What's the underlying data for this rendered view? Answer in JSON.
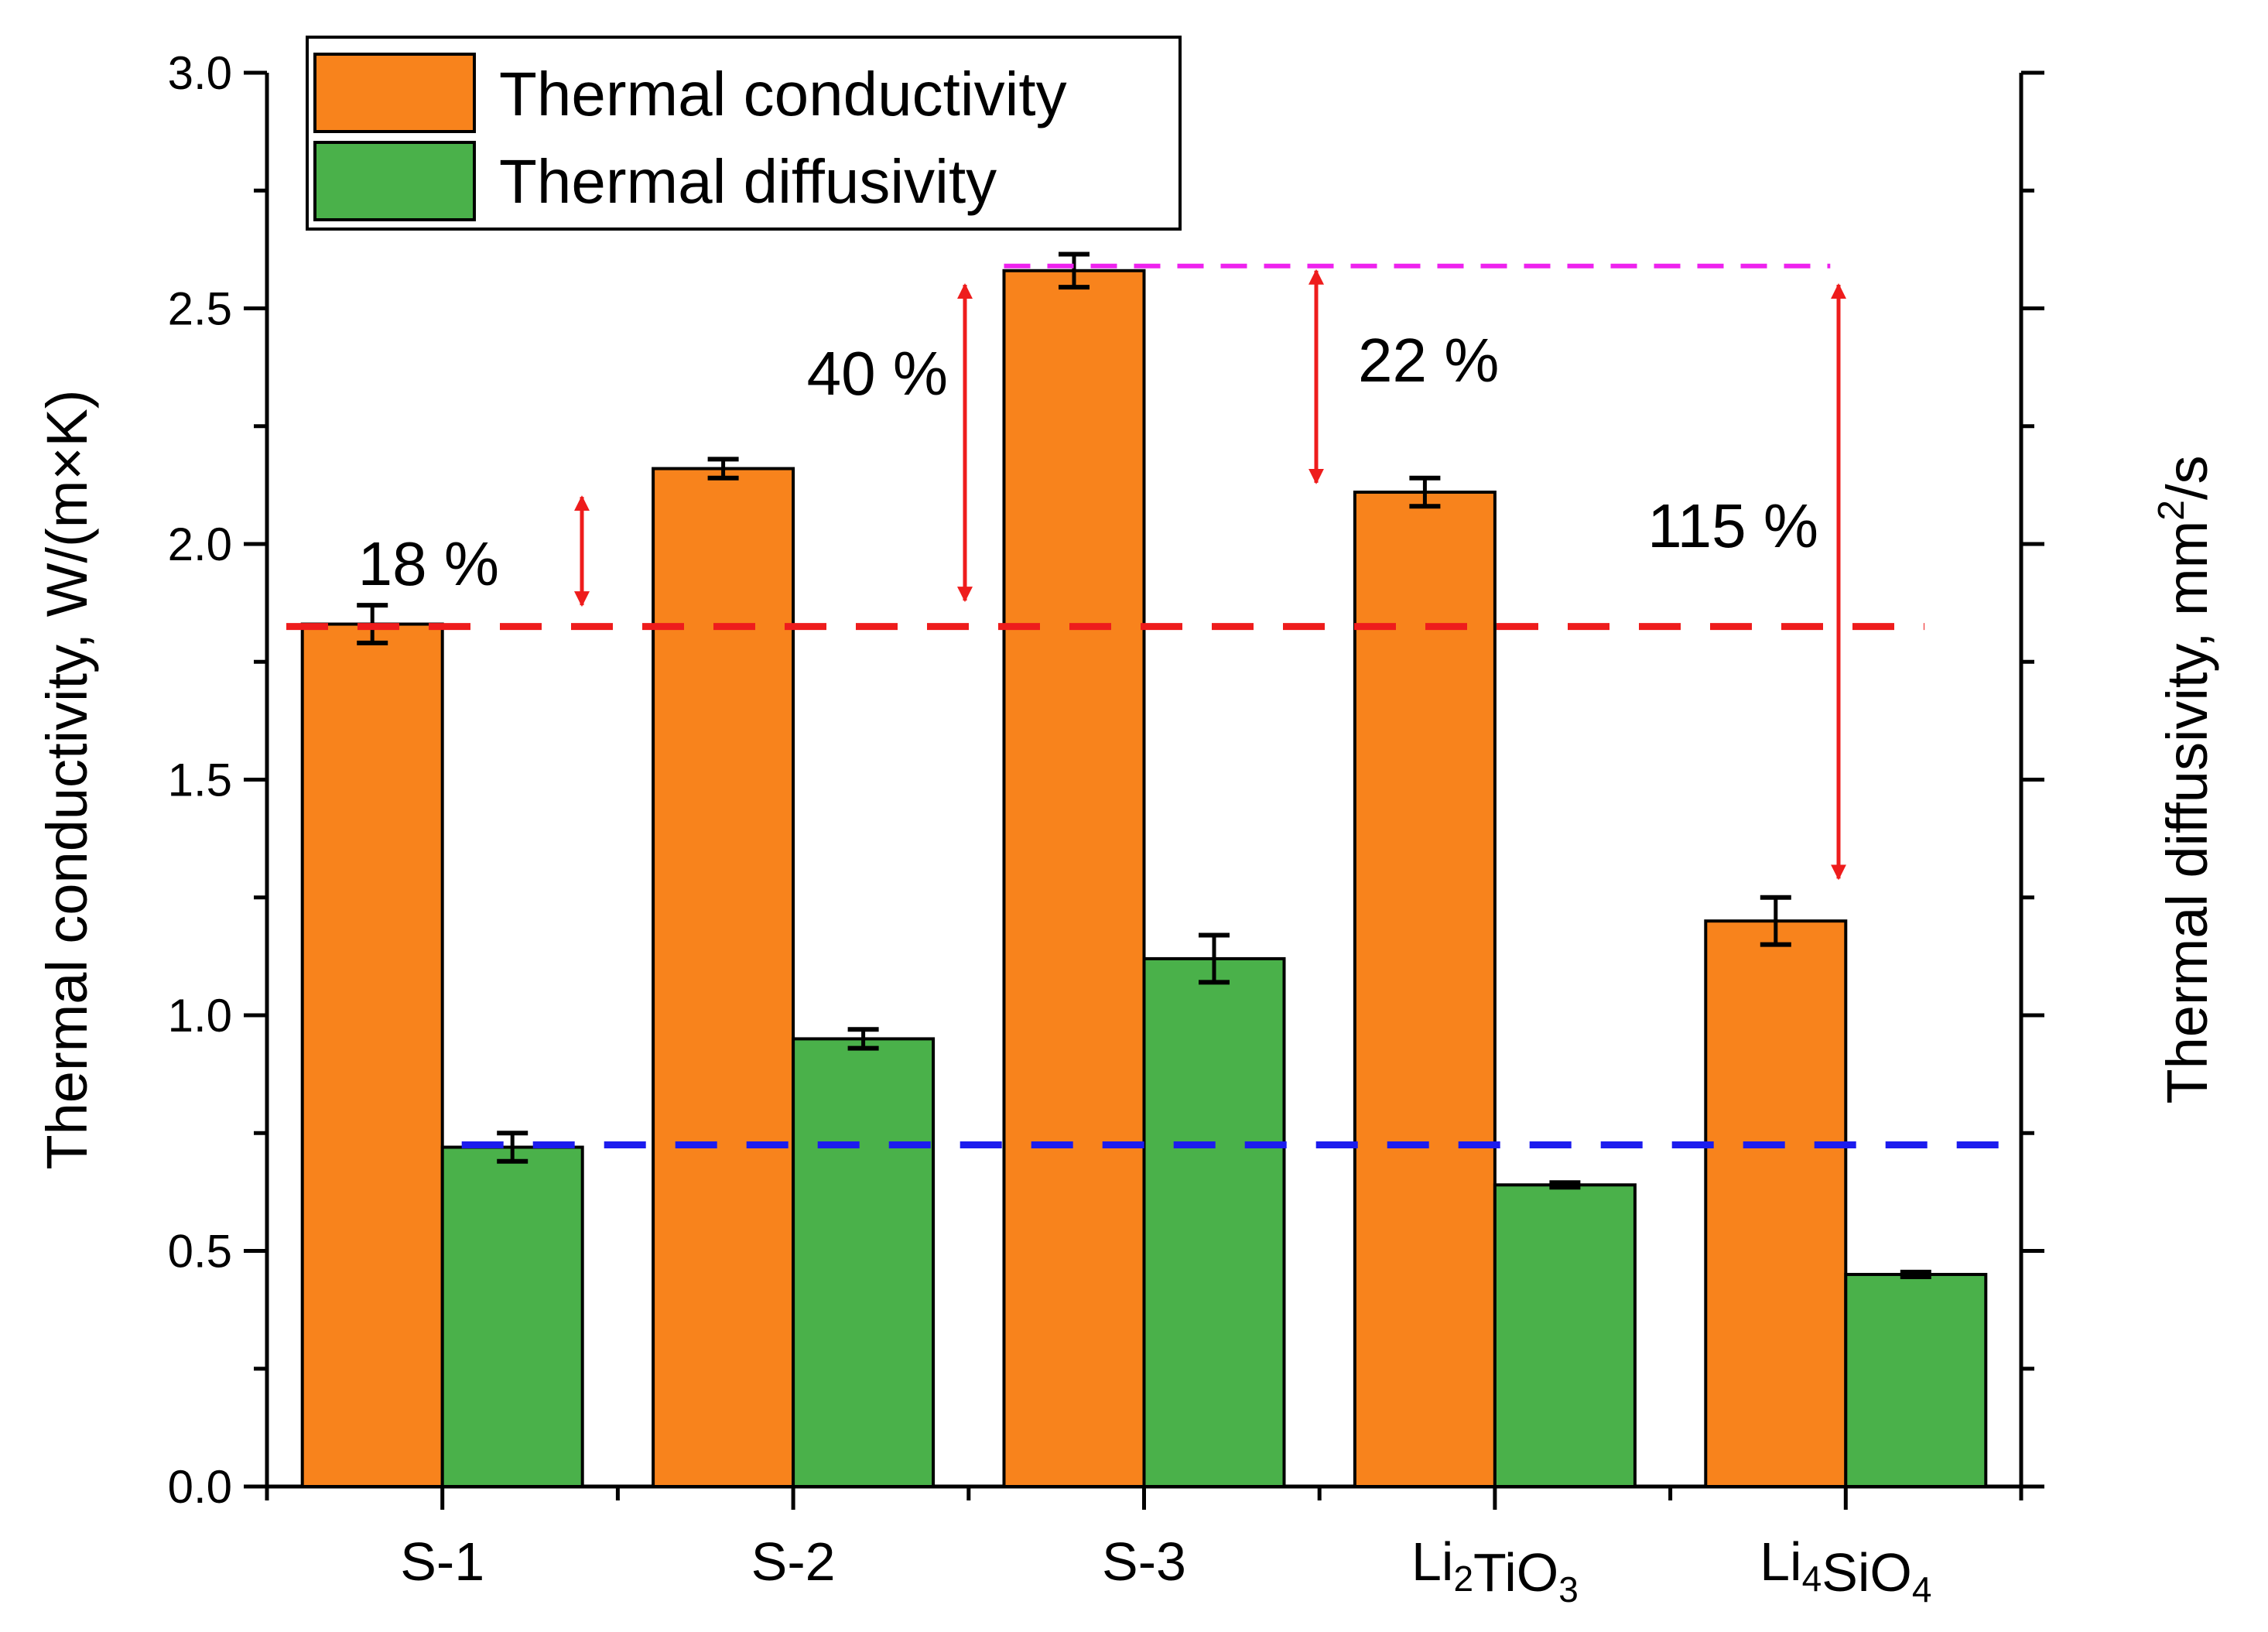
{
  "chart_data": {
    "type": "bar",
    "categories": [
      "S-1",
      "S-2",
      "S-3",
      "Li2TiO3",
      "Li4SiO4"
    ],
    "category_labels": [
      {
        "base": "S-1",
        "sub1": "",
        "mid": "",
        "sub2": ""
      },
      {
        "base": "S-2",
        "sub1": "",
        "mid": "",
        "sub2": ""
      },
      {
        "base": "S-3",
        "sub1": "",
        "mid": "",
        "sub2": ""
      },
      {
        "base": "Li",
        "sub1": "2",
        "mid": "TiO",
        "sub2": "3"
      },
      {
        "base": "Li",
        "sub1": "4",
        "mid": "SiO",
        "sub2": "4"
      }
    ],
    "series": [
      {
        "name": "Thermal conductivity",
        "color": "#f8831c",
        "values": [
          1.83,
          2.16,
          2.58,
          2.11,
          1.2
        ],
        "errors": [
          0.04,
          0.02,
          0.035,
          0.03,
          0.05
        ]
      },
      {
        "name": "Thermal diffusivity",
        "color": "#4ab14a",
        "values": [
          0.72,
          0.95,
          1.12,
          0.64,
          0.45
        ],
        "errors": [
          0.03,
          0.02,
          0.05,
          0.005,
          0.005
        ]
      }
    ],
    "ylim": [
      0,
      3.0
    ],
    "yticks": [
      0.0,
      0.5,
      1.0,
      1.5,
      2.0,
      2.5,
      3.0
    ],
    "ytick_labels": [
      "0.0",
      "0.5",
      "1.0",
      "1.5",
      "2.0",
      "2.5",
      "3.0"
    ],
    "ylabel": "Thermal conductivity, W/(m×K)",
    "y2label": {
      "text": "Thermal diffusivity, mm",
      "sup": "2",
      "suffix": "/s"
    },
    "legend_position": "top-left",
    "reference_lines": [
      {
        "name": "S-1 conductivity level",
        "value": 1.825,
        "color": "#ee1c1c",
        "style": "dashed"
      },
      {
        "name": "S-3 conductivity level",
        "value": 2.59,
        "color": "#ee22ee",
        "style": "dashed"
      },
      {
        "name": "S-1 diffusivity level",
        "value": 0.725,
        "color": "#1c1cee",
        "style": "dashed"
      }
    ],
    "annotations": [
      {
        "text": "18 %",
        "from": 1.87,
        "to": 2.1,
        "category": "S-1"
      },
      {
        "text": "40 %",
        "from": 1.88,
        "to": 2.55,
        "category": "S-2"
      },
      {
        "text": "22 %",
        "from": 2.13,
        "to": 2.58,
        "category": "S-3"
      },
      {
        "text": "115 %",
        "from": 1.29,
        "to": 2.55,
        "category": "Li4SiO4"
      }
    ],
    "arrow_color": "#ee1c1c"
  }
}
